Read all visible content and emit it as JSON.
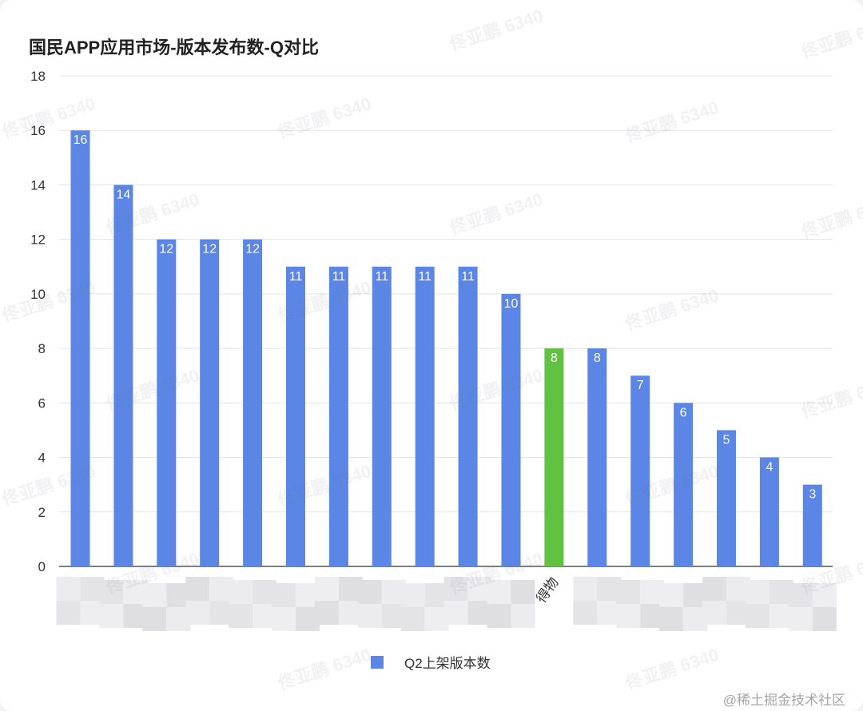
{
  "chart_data": {
    "type": "bar",
    "title": "国民APP应用市场-版本发布数-Q对比",
    "ylim": [
      0,
      18
    ],
    "yticks": [
      0,
      2,
      4,
      6,
      8,
      10,
      12,
      14,
      16,
      18
    ],
    "grid": true,
    "legend_position": "bottom",
    "categories": [
      "",
      "",
      "",
      "",
      "",
      "",
      "",
      "",
      "",
      "",
      "",
      "得物",
      "",
      "",
      "",
      "",
      "",
      ""
    ],
    "series": [
      {
        "name": "Q2上架版本数",
        "values": [
          16,
          14,
          12,
          12,
          12,
          11,
          11,
          11,
          11,
          11,
          10,
          8,
          8,
          7,
          6,
          5,
          4,
          3
        ]
      }
    ],
    "colors": {
      "default": "#5b86e5",
      "highlight": "#62c142",
      "highlight_category": "得物",
      "grid": "#e3e3e6",
      "axis": "#333333"
    }
  },
  "watermark": {
    "text": "佟亚鹏 6340",
    "footer": "@稀土掘金技术社区"
  }
}
